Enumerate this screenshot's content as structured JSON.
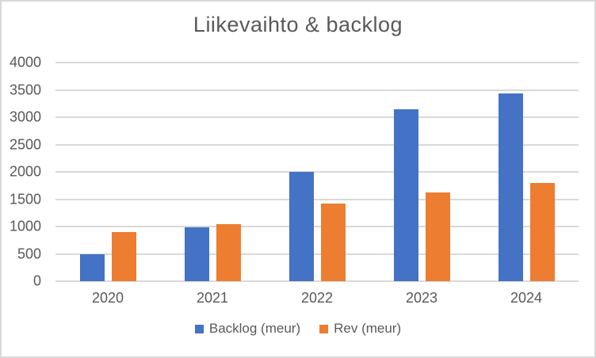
{
  "chart_data": {
    "type": "bar",
    "title": "Liikevaihto & backlog",
    "categories": [
      "2020",
      "2021",
      "2022",
      "2023",
      "2024"
    ],
    "series": [
      {
        "name": "Backlog (meur)",
        "color": "#4472C4",
        "values": [
          490,
          980,
          2000,
          3140,
          3430
        ]
      },
      {
        "name": "Rev (meur)",
        "color": "#ED7D31",
        "values": [
          900,
          1050,
          1420,
          1620,
          1790
        ]
      }
    ],
    "ylim": [
      0,
      4000
    ],
    "ytick_step": 500,
    "ytick_labels": [
      "0",
      "500",
      "1000",
      "1500",
      "2000",
      "2500",
      "3000",
      "3500",
      "4000"
    ],
    "grid": "horizontal gridlines on",
    "legend_position": "bottom",
    "colors": {
      "text": "#595959",
      "gridline": "#D9D9D9",
      "frame_border": "#D9D9D9",
      "background": "#FFFFFF"
    }
  }
}
